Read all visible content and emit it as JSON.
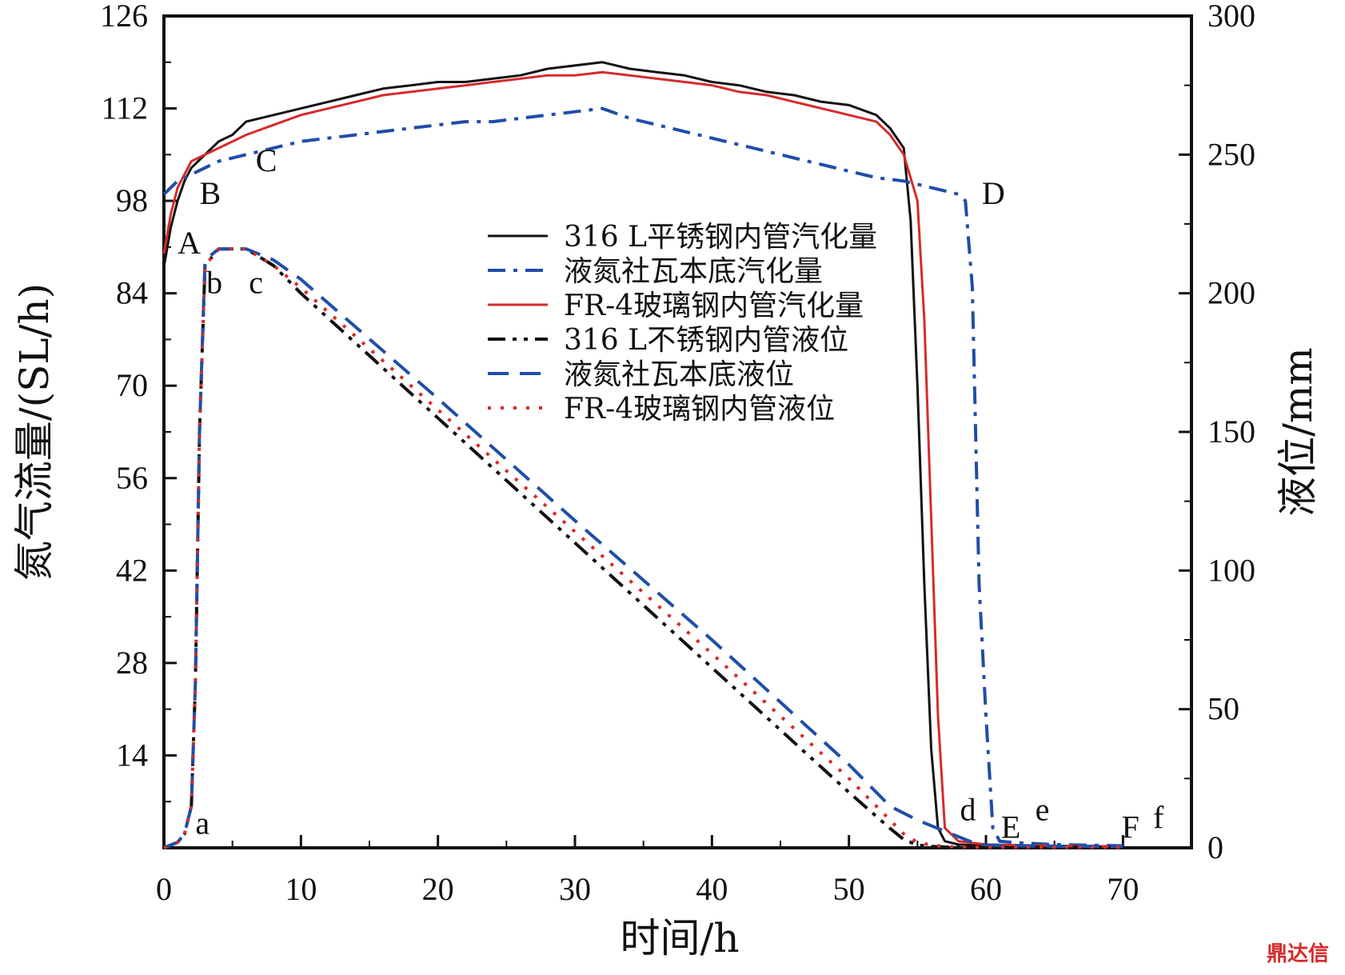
{
  "chart_data": {
    "type": "line",
    "xlabel": "时间/h",
    "ylabel_left": "氮气流量/(SL/h)",
    "ylabel_right": "液位/mm",
    "xlim": [
      0,
      75
    ],
    "ylim_left": [
      0,
      126
    ],
    "ylim_right": [
      0,
      300
    ],
    "x_ticks": [
      0,
      10,
      20,
      30,
      40,
      50,
      60,
      70
    ],
    "y_left_ticks": [
      14,
      28,
      42,
      56,
      70,
      84,
      98,
      112,
      126
    ],
    "y_right_ticks": [
      0,
      50,
      100,
      150,
      200,
      250,
      300
    ],
    "grid": false,
    "legend_position": "upper-center",
    "series": [
      {
        "name": "316 L平锈钢内管汽化量",
        "axis": "left",
        "color": "#111111",
        "style": "solid",
        "x": [
          0,
          0.5,
          1,
          1.5,
          2,
          3,
          4,
          5,
          6,
          8,
          10,
          12,
          14,
          16,
          18,
          20,
          22,
          24,
          26,
          28,
          30,
          32,
          34,
          36,
          38,
          40,
          42,
          44,
          46,
          48,
          50,
          52,
          53,
          54,
          54.5,
          55,
          55.5,
          56,
          56.5,
          57,
          58,
          60,
          65,
          70
        ],
        "y": [
          88,
          94,
          98,
          101,
          103,
          105,
          107,
          108,
          110,
          111,
          112,
          113,
          114,
          115,
          115.5,
          116,
          116,
          116.5,
          117,
          118,
          118.5,
          119,
          118,
          117.5,
          117,
          116,
          115.5,
          114.5,
          114,
          113,
          112.5,
          111,
          109,
          106,
          95,
          70,
          40,
          15,
          3,
          1,
          0.5,
          0.3,
          0.2,
          0.2
        ]
      },
      {
        "name": "液氮社瓦本底汽化量",
        "axis": "left",
        "color": "#1f4ea8",
        "style": "dashdot",
        "x": [
          0,
          0.5,
          1,
          2,
          3,
          4,
          6,
          8,
          10,
          12,
          14,
          16,
          18,
          20,
          22,
          24,
          26,
          28,
          30,
          32,
          34,
          36,
          38,
          40,
          42,
          44,
          46,
          48,
          50,
          52,
          54,
          56,
          57,
          58,
          58.5,
          59,
          59.5,
          60,
          60.5,
          61,
          62,
          65,
          70
        ],
        "y": [
          99,
          100,
          101,
          102,
          103,
          104,
          105,
          106,
          107,
          107.5,
          108,
          108.5,
          109,
          109.5,
          110,
          110,
          110.5,
          111,
          111.5,
          112,
          110.5,
          109.5,
          108.5,
          107.5,
          106.5,
          105.5,
          104.5,
          103.5,
          102.5,
          101.5,
          101,
          100,
          99.5,
          99,
          98,
          85,
          40,
          20,
          3,
          1,
          0.8,
          0.5,
          0.3
        ]
      },
      {
        "name": "FR-4玻璃钢内管汽化量",
        "axis": "left",
        "color": "#d62b2b",
        "style": "solid",
        "x": [
          0,
          0.5,
          1,
          1.5,
          2,
          3,
          4,
          6,
          8,
          10,
          12,
          14,
          16,
          18,
          20,
          22,
          24,
          26,
          28,
          30,
          32,
          34,
          36,
          38,
          40,
          42,
          44,
          46,
          48,
          50,
          52,
          53,
          54,
          55,
          55.5,
          56,
          56.5,
          57,
          58,
          60,
          65,
          70
        ],
        "y": [
          90,
          96,
          100,
          102,
          104,
          105,
          106,
          108,
          109.5,
          111,
          112,
          113,
          114,
          114.5,
          115,
          115.5,
          116,
          116.5,
          117,
          117,
          117.5,
          117,
          116.5,
          116,
          115.5,
          114.5,
          114,
          113,
          112,
          111,
          110,
          108,
          105,
          98,
          80,
          50,
          20,
          3,
          1,
          0.5,
          0.3,
          0.2
        ]
      },
      {
        "name": "316 L不锈钢内管液位",
        "axis": "right",
        "color": "#111111",
        "style": "dashdotdot",
        "x": [
          0,
          1,
          1.5,
          2,
          2.3,
          2.6,
          3,
          4,
          5,
          6,
          8,
          10,
          20,
          30,
          40,
          50,
          53,
          54,
          55,
          56,
          57,
          58,
          60,
          65,
          70
        ],
        "y": [
          0,
          2,
          5,
          15,
          60,
          150,
          210,
          216,
          216,
          216,
          210,
          200,
          155,
          110,
          65,
          20,
          7,
          3,
          1,
          0.5,
          0.3,
          0.2,
          0.2,
          0.2,
          0.2
        ]
      },
      {
        "name": "液氮社瓦本底液位",
        "axis": "right",
        "color": "#1f4ea8",
        "style": "dashed",
        "x": [
          0,
          1,
          1.5,
          2,
          2.3,
          2.6,
          3,
          4,
          5,
          6,
          8,
          10,
          20,
          30,
          40,
          50,
          53,
          55,
          56,
          57,
          58,
          59,
          60,
          62,
          65,
          70
        ],
        "y": [
          0,
          2,
          5,
          15,
          60,
          150,
          212,
          216,
          216,
          216,
          212,
          205,
          162,
          118,
          75,
          30,
          15,
          10,
          8,
          6,
          4,
          2,
          1,
          0.8,
          0.6,
          0.5
        ]
      },
      {
        "name": "FR-4玻璃钢内管液位",
        "axis": "right",
        "color": "#d62b2b",
        "style": "dotted",
        "x": [
          0,
          1,
          1.5,
          2,
          2.3,
          2.6,
          3,
          4,
          5,
          6,
          8,
          10,
          20,
          30,
          40,
          50,
          53,
          54,
          55,
          56,
          57,
          58,
          60,
          65,
          70
        ],
        "y": [
          0,
          2,
          5,
          15,
          60,
          150,
          210,
          216,
          216,
          216,
          210,
          202,
          158,
          114,
          70,
          25,
          10,
          5,
          2,
          1,
          0.5,
          0.3,
          0.2,
          0.2,
          0.2
        ]
      }
    ],
    "annotations": [
      {
        "text": "A",
        "x": 1.0,
        "y": 90,
        "axis": "left"
      },
      {
        "text": "B",
        "x": 2.6,
        "y": 97.5,
        "axis": "left"
      },
      {
        "text": "C",
        "x": 6.7,
        "y": 102.5,
        "axis": "left"
      },
      {
        "text": "D",
        "x": 59.7,
        "y": 97.5,
        "axis": "left"
      },
      {
        "text": "E",
        "x": 61.1,
        "y": 1.5,
        "axis": "left"
      },
      {
        "text": "F",
        "x": 69.9,
        "y": 1.5,
        "axis": "left"
      },
      {
        "text": "a",
        "x": 2.3,
        "y": 5,
        "axis": "right"
      },
      {
        "text": "b",
        "x": 3.1,
        "y": 200,
        "axis": "right"
      },
      {
        "text": "c",
        "x": 6.2,
        "y": 200,
        "axis": "right"
      },
      {
        "text": "d",
        "x": 58.1,
        "y": 10,
        "axis": "right"
      },
      {
        "text": "e",
        "x": 63.6,
        "y": 10,
        "axis": "right"
      },
      {
        "text": "f",
        "x": 72.2,
        "y": 7,
        "axis": "right"
      }
    ]
  },
  "watermark": "鼎达信"
}
